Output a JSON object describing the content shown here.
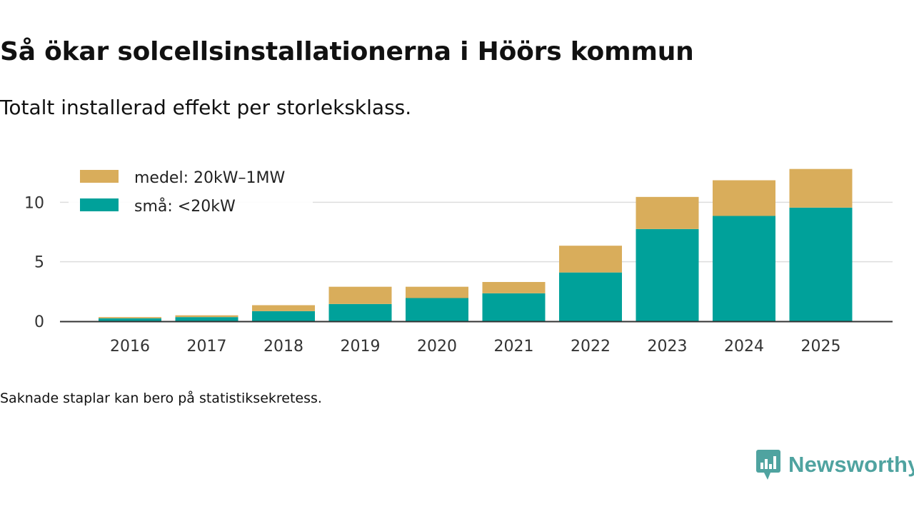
{
  "header": {
    "title": "Så ökar solcellsinstallationerna i Höörs kommun",
    "subtitle": "Totalt installerad effekt per storleksklass."
  },
  "footer": {
    "note": "Saknade staplar kan bero på statistiksekretess.",
    "brand": "Newsworthy"
  },
  "colors": {
    "small": "#00a19a",
    "medium": "#d9ad5b",
    "brand": "#4fa3a0",
    "grid": "#dddddd",
    "axis": "#333333"
  },
  "chart_data": {
    "type": "bar",
    "stacked": true,
    "title": "Så ökar solcellsinstallationerna i Höörs kommun",
    "subtitle": "Totalt installerad effekt per storleksklass.",
    "xlabel": "",
    "ylabel": "",
    "ylim": [
      0,
      13.2
    ],
    "yticks": [
      0,
      5,
      10
    ],
    "grid": true,
    "legend_position": "top-left",
    "categories": [
      "2016",
      "2017",
      "2018",
      "2019",
      "2020",
      "2021",
      "2022",
      "2023",
      "2024",
      "2025"
    ],
    "series": [
      {
        "name": "små: <20kW",
        "color": "#00a19a",
        "values": [
          0.25,
          0.35,
          0.85,
          1.45,
          1.95,
          2.35,
          4.1,
          7.75,
          8.85,
          9.55
        ]
      },
      {
        "name": "medel: 20kW–1MW",
        "color": "#d9ad5b",
        "values": [
          0.1,
          0.15,
          0.5,
          1.45,
          0.95,
          0.95,
          2.25,
          2.7,
          3.0,
          3.25
        ]
      }
    ],
    "legend": [
      "medel: 20kW–1MW",
      "små: <20kW"
    ]
  }
}
